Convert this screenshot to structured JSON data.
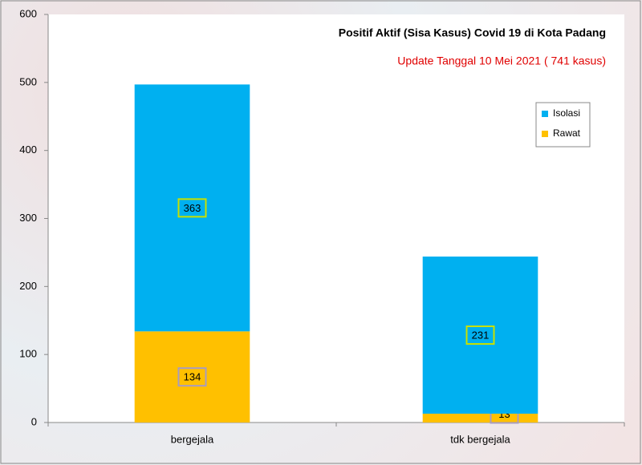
{
  "chart_data": {
    "type": "stacked_bar",
    "title": "Positif Aktif  (Sisa Kasus) Covid 19 di Kota Padang",
    "subtitle": "Update Tanggal 10 Mei 2021 ( 741 kasus)",
    "categories": [
      "bergejala",
      "tdk bergejala"
    ],
    "series": [
      {
        "name": "Rawat",
        "color": "#FFC000",
        "values": [
          134,
          13
        ]
      },
      {
        "name": "Isolasi",
        "color": "#00B0F0",
        "values": [
          363,
          231
        ]
      }
    ],
    "ylim": [
      0,
      600
    ],
    "yticks": [
      0,
      100,
      200,
      300,
      400,
      500,
      600
    ],
    "legend": "upper right"
  }
}
